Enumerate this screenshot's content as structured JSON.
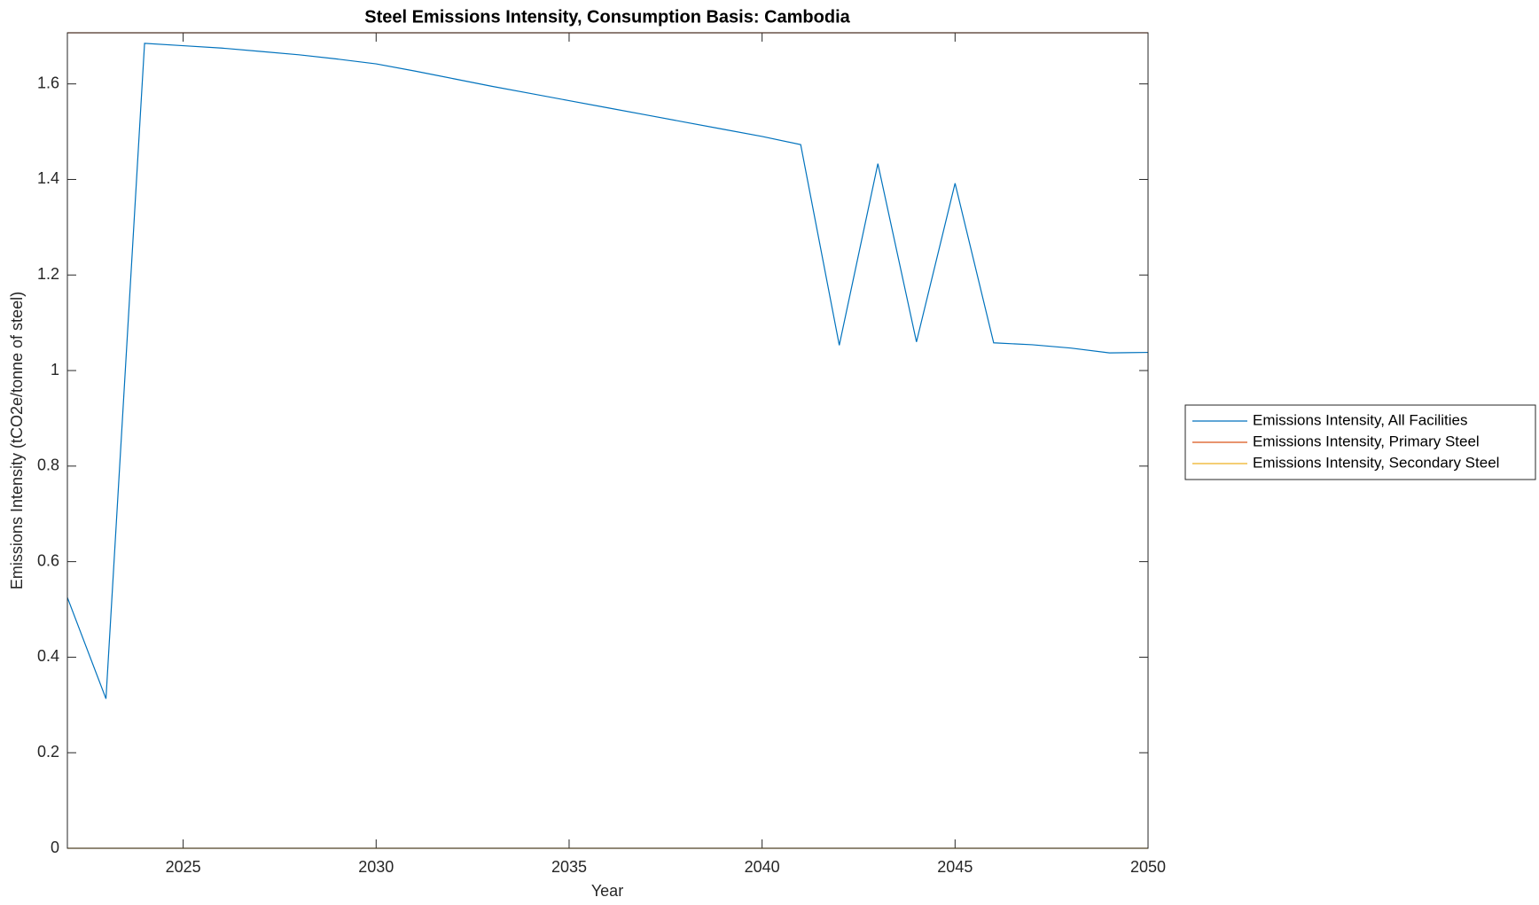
{
  "chart_data": {
    "type": "line",
    "title": "Steel Emissions Intensity, Consumption Basis: Cambodia",
    "x_label": "Year",
    "y_label": "Emissions Intensity (tCO2e/tonne of steel)",
    "x": [
      2022,
      2023,
      2024,
      2025,
      2026,
      2027,
      2028,
      2029,
      2030,
      2031,
      2032,
      2033,
      2034,
      2035,
      2036,
      2037,
      2038,
      2039,
      2040,
      2041,
      2042,
      2043,
      2044,
      2045,
      2046,
      2047,
      2048,
      2049,
      2050
    ],
    "series": [
      {
        "name": "Emissions Intensity, All Facilities",
        "color": "#0072BD",
        "values": [
          0.525,
          0.313,
          1.685,
          1.68,
          1.675,
          1.668,
          1.661,
          1.652,
          1.642,
          1.627,
          1.611,
          1.595,
          1.58,
          1.565,
          1.55,
          1.535,
          1.52,
          1.505,
          1.49,
          1.473,
          1.053,
          1.433,
          1.06,
          1.392,
          1.058,
          1.054,
          1.047,
          1.037,
          1.038
        ]
      },
      {
        "name": "Emissions Intensity, Primary Steel",
        "color": "#D95319",
        "values": [
          1.707,
          1.707,
          1.707,
          1.707,
          1.707,
          1.707,
          1.707,
          1.707,
          1.707,
          1.707,
          1.707,
          1.707,
          1.707,
          1.707,
          1.707,
          1.707,
          1.707,
          1.707,
          1.707,
          1.707,
          1.707,
          1.707,
          1.707,
          1.707,
          1.707,
          1.707,
          1.707,
          1.707,
          1.707
        ]
      },
      {
        "name": "Emissions Intensity, Secondary Steel",
        "color": "#EDB120",
        "values": [
          0,
          0,
          0,
          0,
          0,
          0,
          0,
          0,
          0,
          0,
          0,
          0,
          0,
          0,
          0,
          0,
          0,
          0,
          0,
          0,
          0,
          0,
          0,
          0,
          0,
          0,
          0,
          0,
          0
        ]
      }
    ],
    "xlim": [
      2022,
      2050
    ],
    "xticks": [
      2025,
      2030,
      2035,
      2040,
      2045,
      2050
    ],
    "ylim": [
      0,
      1.707
    ],
    "yticks": [
      0,
      0.2,
      0.4,
      0.6,
      0.8,
      1,
      1.2,
      1.4,
      1.6
    ],
    "grid": false,
    "legend": "outside-right"
  }
}
